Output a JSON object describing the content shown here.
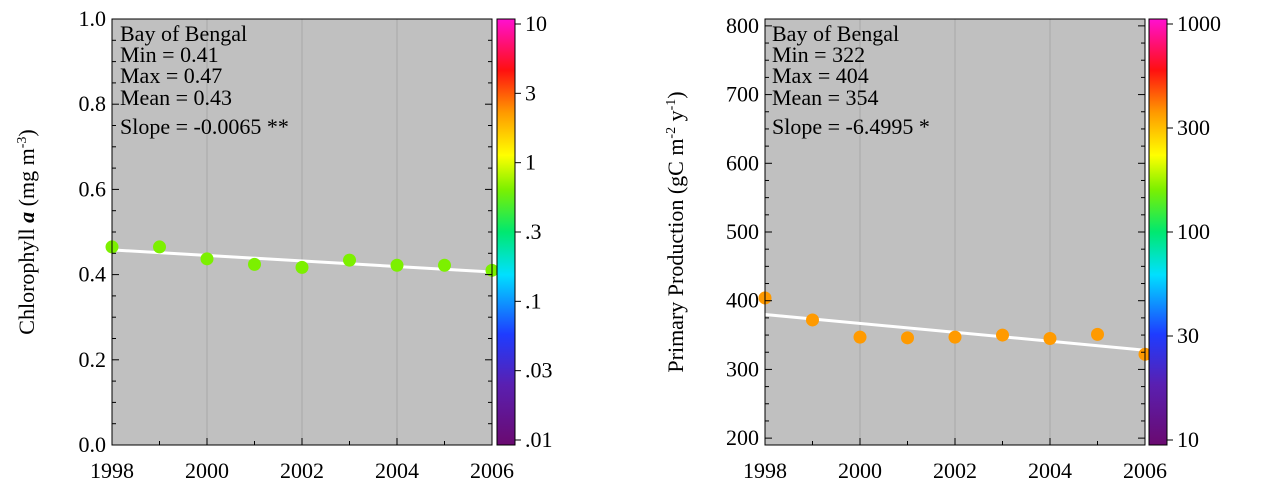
{
  "chart_data": [
    {
      "type": "scatter",
      "ylabel_pre": "Chlorophyll ",
      "ylabel_bold": "a",
      "ylabel_unit": "  (mg m",
      "ylabel_sup": "-3",
      "ylabel_close": ")",
      "xlim": [
        1998,
        2006
      ],
      "ylim": [
        0.0,
        1.0
      ],
      "x_ticks": [
        "1998",
        "2000",
        "2002",
        "2004",
        "2006"
      ],
      "y_ticks": [
        "0.0",
        "0.2",
        "0.4",
        "0.6",
        "0.8",
        "1.0"
      ],
      "x": [
        1998,
        1999,
        2000,
        2001,
        2002,
        2003,
        2004,
        2005,
        2006
      ],
      "values": [
        0.465,
        0.465,
        0.437,
        0.424,
        0.417,
        0.434,
        0.422,
        0.422,
        0.41
      ],
      "point_color": "#7cf000",
      "trend": [
        0.458,
        0.406
      ],
      "annotations": [
        "Bay of Bengal",
        "Min = 0.41",
        "Max = 0.47",
        "Mean = 0.43",
        "Slope = -0.0065 **"
      ],
      "colorbar_ticks": [
        "10",
        "3",
        "1",
        ".3",
        ".1",
        ".03",
        ".01"
      ],
      "grid": true
    },
    {
      "type": "scatter",
      "ylabel_pre": "Primary Production  (gC m",
      "ylabel_sup1": "-2",
      "ylabel_mid": " y",
      "ylabel_sup2": "-1",
      "ylabel_close": ")",
      "xlim": [
        1998,
        2006
      ],
      "ylim": [
        190,
        810
      ],
      "x_ticks": [
        "1998",
        "2000",
        "2002",
        "2004",
        "2006"
      ],
      "y_ticks": [
        "200",
        "300",
        "400",
        "500",
        "600",
        "700",
        "800"
      ],
      "x": [
        1998,
        1999,
        2000,
        2001,
        2002,
        2003,
        2004,
        2005,
        2006
      ],
      "values": [
        404,
        372,
        347,
        346,
        347,
        350,
        345,
        351,
        322
      ],
      "point_color": "#ff9a00",
      "trend": [
        380,
        328
      ],
      "annotations": [
        "Bay of Bengal",
        "Min = 322",
        "Max = 404",
        "Mean = 354",
        "Slope = -6.4995 *"
      ],
      "colorbar_ticks": [
        "1000",
        "300",
        "100",
        "30",
        "10"
      ],
      "grid": true
    }
  ]
}
